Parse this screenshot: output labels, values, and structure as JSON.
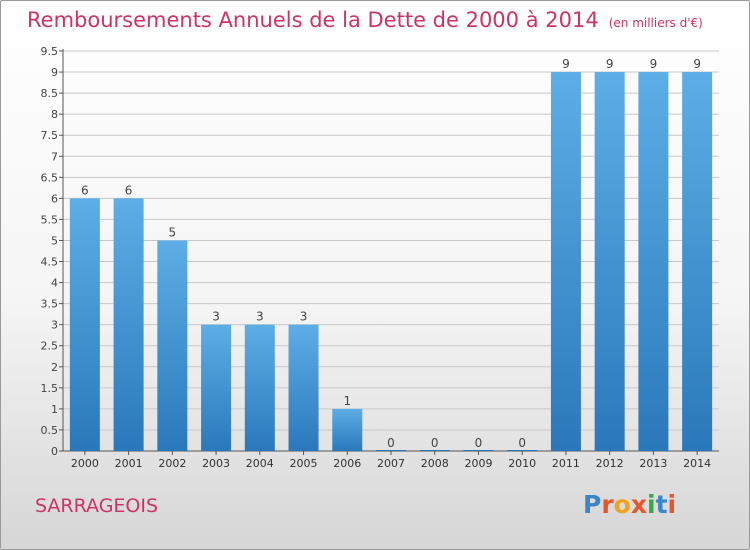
{
  "title": {
    "main": "Remboursements Annuels de la Dette de 2000 à 2014",
    "unit": "(en milliers d'€)"
  },
  "commune": "SARRAGEOIS",
  "logo": {
    "text": "Proxiti",
    "letters": [
      {
        "ch": "P",
        "color": "#3a86c8"
      },
      {
        "ch": "r",
        "color": "#e8552a"
      },
      {
        "ch": "o",
        "color": "#f0a21a"
      },
      {
        "ch": "x",
        "color": "#e8552a"
      },
      {
        "ch": "i",
        "color": "#3aa64a"
      },
      {
        "ch": "t",
        "color": "#3a86c8"
      },
      {
        "ch": "i",
        "color": "#e8552a"
      }
    ]
  },
  "colors": {
    "bar_light": "#5daee6",
    "bar_dark": "#2a78bb",
    "title": "#cc3366",
    "grid": "#c8c8c8"
  },
  "chart_data": {
    "type": "bar",
    "categories": [
      "2000",
      "2001",
      "2002",
      "2003",
      "2004",
      "2005",
      "2006",
      "2007",
      "2008",
      "2009",
      "2010",
      "2011",
      "2012",
      "2013",
      "2014"
    ],
    "values": [
      6,
      6,
      5,
      3,
      3,
      3,
      1,
      0,
      0,
      0,
      0,
      9,
      9,
      9,
      9
    ],
    "data_labels": [
      "6",
      "6",
      "5",
      "3",
      "3",
      "3",
      "1",
      "0",
      "0",
      "0",
      "0",
      "9",
      "9",
      "9",
      "9"
    ],
    "y_ticks": [
      "0",
      "0.5",
      "1",
      "1.5",
      "2",
      "2.5",
      "3",
      "3.5",
      "4",
      "4.5",
      "5",
      "5.5",
      "6",
      "6.5",
      "7",
      "7.5",
      "8",
      "8.5",
      "9",
      "9.5"
    ],
    "ylim": [
      0,
      9.5
    ],
    "grid": true
  }
}
